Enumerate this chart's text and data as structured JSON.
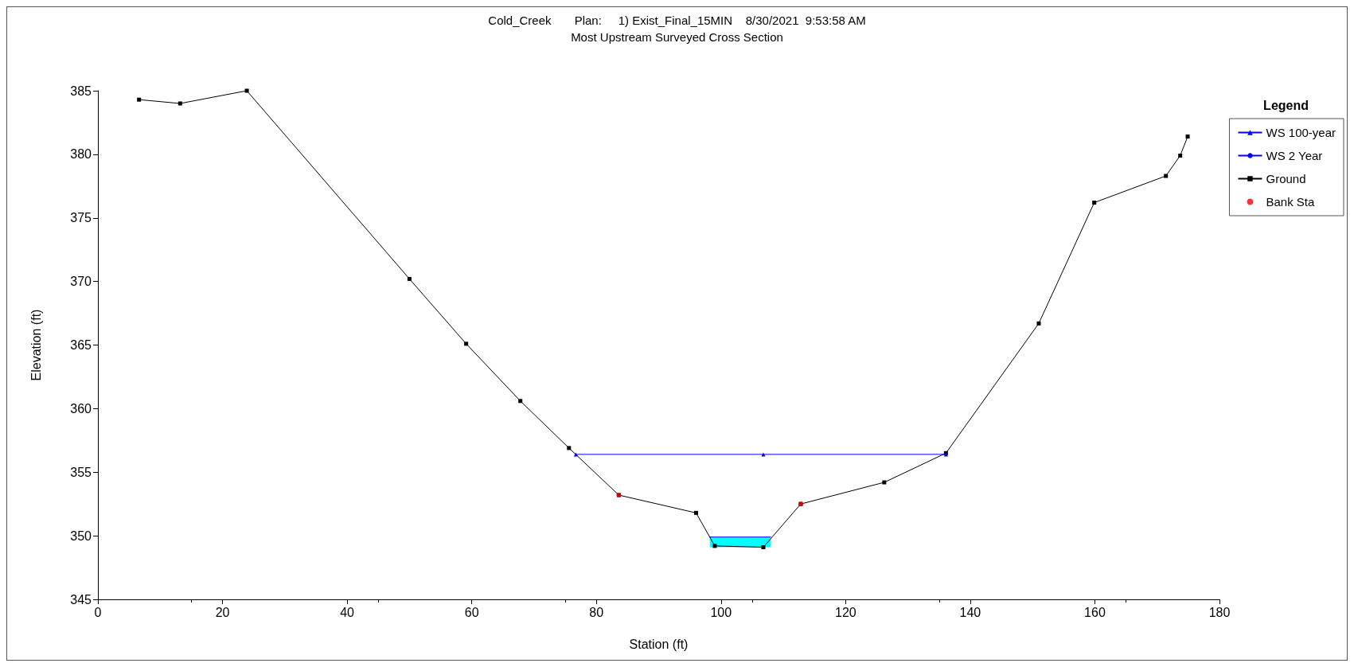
{
  "chart_data": {
    "type": "line",
    "title": "Cold_Creek       Plan:     1) Exist_Final_15MIN    8/30/2021  9:53:58 AM",
    "subtitle": "Most Upstream Surveyed Cross Section",
    "xlabel": "Station (ft)",
    "ylabel": "Elevation (ft)",
    "legend_title": "Legend",
    "legend": "top right",
    "grid": false,
    "xlim": [
      0,
      180
    ],
    "xticks": [
      0,
      20,
      40,
      60,
      80,
      100,
      120,
      140,
      160,
      180
    ],
    "ylim": [
      345,
      385
    ],
    "yticks": [
      345,
      350,
      355,
      360,
      365,
      370,
      375,
      380,
      385
    ],
    "series": [
      {
        "name": "WS 100-year",
        "type": "line",
        "color": "#0000ff",
        "marker": "triangle",
        "x": [
          76.7,
          106.8,
          136.1
        ],
        "values": [
          356.4,
          356.4,
          356.4
        ]
      },
      {
        "name": "WS 2 Year",
        "type": "area",
        "color": "#0000ff",
        "marker": "none",
        "x": [
          98.2,
          108.0
        ],
        "values": [
          349.9,
          349.9
        ]
      },
      {
        "name": "Ground",
        "color": "#000000",
        "marker": "square",
        "x": [
          6.6,
          13.2,
          23.9,
          50.0,
          59.1,
          67.8,
          75.6,
          83.6,
          96.0,
          99.0,
          106.8,
          112.8,
          126.2,
          136.1,
          151.0,
          159.9,
          171.4,
          173.7,
          174.9
        ],
        "values": [
          384.3,
          384.0,
          385.0,
          370.2,
          365.1,
          360.6,
          356.9,
          353.2,
          351.8,
          349.2,
          349.1,
          352.5,
          354.2,
          356.5,
          366.7,
          376.2,
          378.3,
          379.9,
          381.4
        ]
      },
      {
        "name": "Bank Sta",
        "type": "scatter",
        "color": "#ff0000",
        "marker": "circle",
        "x": [
          83.6,
          112.8
        ],
        "values": [
          353.2,
          352.5
        ]
      }
    ]
  }
}
